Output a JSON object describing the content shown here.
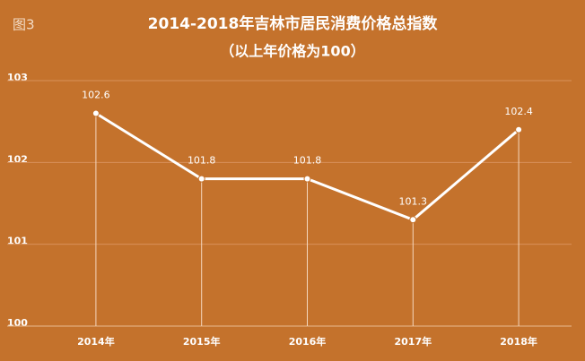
{
  "chart_data": {
    "type": "line",
    "figure_label": "图3",
    "title": "2014-2018年吉林市居民消费价格总指数",
    "subtitle": "（以上年价格为100）",
    "categories": [
      "2014年",
      "2015年",
      "2016年",
      "2017年",
      "2018年"
    ],
    "values": [
      102.6,
      101.8,
      101.8,
      101.3,
      102.4
    ],
    "color": "#ffffff",
    "ylim": [
      100,
      103
    ],
    "yticks": [
      100,
      101,
      102,
      103
    ],
    "grid": true
  }
}
